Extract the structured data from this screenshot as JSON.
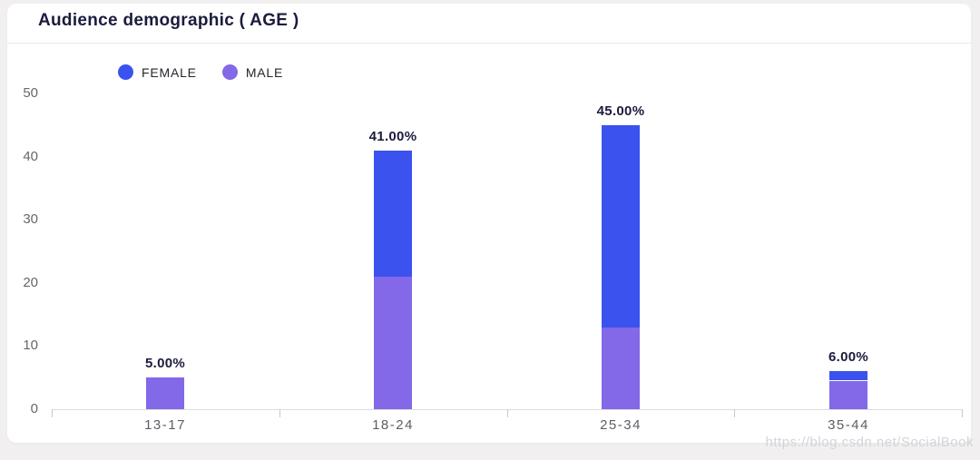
{
  "header": {
    "title": "Audience demographic ( AGE )"
  },
  "legend": {
    "items": [
      {
        "label": "FEMALE",
        "color": "#3b52ee"
      },
      {
        "label": "MALE",
        "color": "#8368e8"
      }
    ]
  },
  "watermark": "https://blog.csdn.net/SocialBook",
  "colors": {
    "female": "#3b52ee",
    "male": "#8368e8",
    "page_background": "#f1eff0",
    "card_background": "#ffffff",
    "title_text": "#1b1b3d",
    "axis_line": "#dcdce0"
  },
  "chart_data": {
    "type": "bar",
    "stacked": true,
    "title": "Audience demographic ( AGE )",
    "categories": [
      "13-17",
      "18-24",
      "25-34",
      "35-44"
    ],
    "series": [
      {
        "name": "MALE",
        "color": "#8368e8",
        "values": [
          5,
          21,
          13,
          4.5
        ]
      },
      {
        "name": "FEMALE",
        "color": "#3b52ee",
        "values": [
          0,
          20,
          32,
          1.5
        ]
      }
    ],
    "totals_labels": [
      "5.00%",
      "41.00%",
      "45.00%",
      "6.00%"
    ],
    "totals_values": [
      5,
      41,
      45,
      6
    ],
    "y_ticks": [
      0,
      10,
      20,
      30,
      40,
      50
    ],
    "ylim": [
      0,
      50
    ],
    "xlabel": "",
    "ylabel": "",
    "grid": false,
    "legend_position": "top-left"
  }
}
